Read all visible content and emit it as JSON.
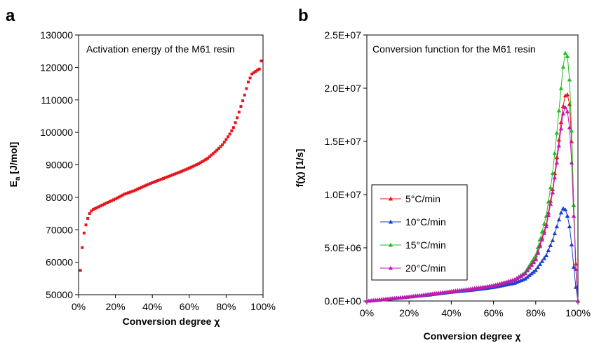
{
  "chart_data": [
    {
      "type": "scatter",
      "panel_label": "a",
      "annotation": "Activation energy of the M61 resin",
      "xlabel": "Conversion degree χ",
      "ylabel_main": "E",
      "ylabel_sub": "a",
      "ylabel_rest": " [J/mol]",
      "xlim": [
        0,
        1
      ],
      "ylim": [
        50000,
        130000
      ],
      "xticks": [
        "0%",
        "20%",
        "40%",
        "60%",
        "80%",
        "100%"
      ],
      "yticks": [
        "50000",
        "60000",
        "70000",
        "80000",
        "90000",
        "100000",
        "110000",
        "120000",
        "130000"
      ],
      "color": "#e8141c",
      "curve": {
        "x": [
          0.01,
          0.02,
          0.03,
          0.04,
          0.05,
          0.06,
          0.07,
          0.08,
          0.1,
          0.15,
          0.2,
          0.25,
          0.3,
          0.35,
          0.4,
          0.45,
          0.5,
          0.55,
          0.6,
          0.65,
          0.7,
          0.75,
          0.78,
          0.8,
          0.82,
          0.84,
          0.86,
          0.88,
          0.9,
          0.92,
          0.94,
          0.96,
          0.97,
          0.98,
          0.99
        ],
        "y": [
          57500,
          64500,
          69000,
          71500,
          73500,
          75000,
          75800,
          76300,
          76800,
          78200,
          79500,
          81000,
          82000,
          83300,
          84500,
          85600,
          86700,
          87800,
          89000,
          90300,
          92000,
          94500,
          96200,
          97800,
          99500,
          101500,
          104500,
          108000,
          111500,
          115500,
          118000,
          118800,
          119200,
          119500,
          122000
        ]
      }
    },
    {
      "type": "line",
      "panel_label": "b",
      "annotation": "Conversion function for the M61 resin",
      "xlabel": "Conversion degree χ",
      "ylabel": "f(χ) [1/s]",
      "xlim": [
        0,
        1
      ],
      "ylim": [
        0,
        25000000
      ],
      "xticks": [
        "0%",
        "20%",
        "40%",
        "60%",
        "80%",
        "100%"
      ],
      "yticks": [
        "0.0E+00",
        "5.0E+06",
        "1.0E+07",
        "1.5E+07",
        "2.0E+07",
        "2.5E+07"
      ],
      "legend_position": "center-left",
      "series": [
        {
          "name": "5°C/min",
          "color": "#e8141c",
          "x": [
            0,
            0.1,
            0.2,
            0.3,
            0.4,
            0.5,
            0.6,
            0.7,
            0.75,
            0.8,
            0.85,
            0.88,
            0.9,
            0.92,
            0.93,
            0.94,
            0.95,
            0.96,
            0.97,
            0.98,
            0.99,
            1.0
          ],
          "y": [
            0,
            200000,
            400000,
            650000,
            900000,
            1150000,
            1450000,
            2000000,
            2600000,
            4000000,
            7200000,
            10500000,
            13500000,
            16800000,
            18300000,
            19300000,
            19400000,
            18500000,
            15000000,
            9000000,
            3500000,
            0
          ]
        },
        {
          "name": "10°C/min",
          "color": "#1a3ecf",
          "x": [
            0,
            0.1,
            0.2,
            0.3,
            0.4,
            0.5,
            0.6,
            0.7,
            0.75,
            0.8,
            0.85,
            0.88,
            0.9,
            0.92,
            0.93,
            0.94,
            0.95,
            0.96,
            0.97,
            0.98,
            0.99,
            1.0
          ],
          "y": [
            0,
            200000,
            400000,
            600000,
            850000,
            1050000,
            1300000,
            1700000,
            2100000,
            2900000,
            4300000,
            5700000,
            7000000,
            8300000,
            8700000,
            8600000,
            8000000,
            7000000,
            5300000,
            3200000,
            1300000,
            0
          ]
        },
        {
          "name": "15°C/min",
          "color": "#1fbf1f",
          "x": [
            0,
            0.1,
            0.2,
            0.3,
            0.4,
            0.5,
            0.6,
            0.7,
            0.75,
            0.8,
            0.85,
            0.88,
            0.9,
            0.92,
            0.93,
            0.94,
            0.95,
            0.96,
            0.97,
            0.98,
            0.99,
            1.0
          ],
          "y": [
            0,
            200000,
            400000,
            650000,
            900000,
            1150000,
            1450000,
            2000000,
            2700000,
            4300000,
            8000000,
            12000000,
            15800000,
            20000000,
            22000000,
            23300000,
            23000000,
            20800000,
            16000000,
            9000000,
            3000000,
            0
          ]
        },
        {
          "name": "20°C/min",
          "color": "#c218b8",
          "x": [
            0,
            0.1,
            0.2,
            0.3,
            0.4,
            0.5,
            0.6,
            0.7,
            0.75,
            0.8,
            0.85,
            0.88,
            0.9,
            0.92,
            0.93,
            0.94,
            0.95,
            0.96,
            0.97,
            0.98,
            0.99,
            1.0
          ],
          "y": [
            0,
            200000,
            400000,
            650000,
            900000,
            1150000,
            1450000,
            2000000,
            2600000,
            3900000,
            7000000,
            10200000,
            13000000,
            16200000,
            17600000,
            18200000,
            17800000,
            16300000,
            13000000,
            8000000,
            3000000,
            0
          ]
        }
      ]
    }
  ]
}
